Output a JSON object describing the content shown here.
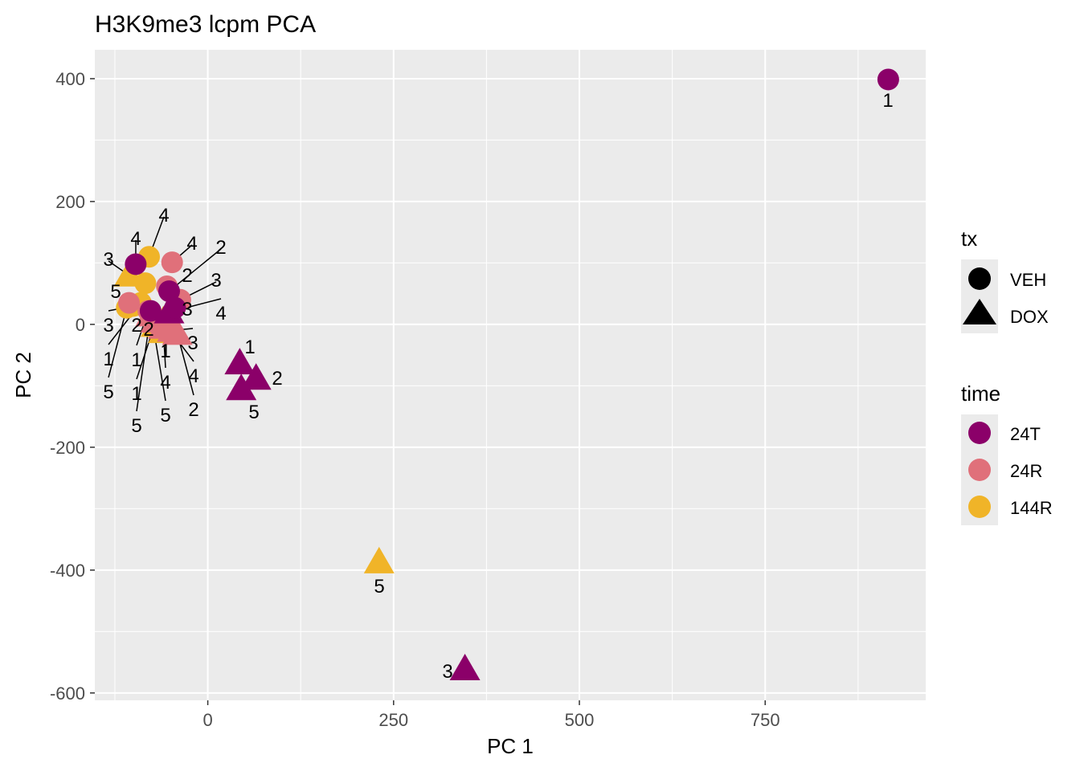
{
  "chart_data": {
    "type": "scatter",
    "title": "H3K9me3 lcpm PCA",
    "xlabel": "PC 1",
    "ylabel": "PC 2",
    "xlim": [
      -152,
      966
    ],
    "ylim": [
      -612,
      447
    ],
    "xticks": [
      0,
      250,
      500,
      750
    ],
    "yticks": [
      -600,
      -400,
      -200,
      0,
      200,
      400
    ],
    "xtick_labels": [
      "0",
      "250",
      "500",
      "750"
    ],
    "ytick_labels": [
      "-600",
      "-400",
      "-200",
      "0",
      "200",
      "400"
    ],
    "grid": true,
    "legend_placement": "right",
    "legend_tx": {
      "title": "tx",
      "items": [
        {
          "label": "VEH",
          "shape": "circle"
        },
        {
          "label": "DOX",
          "shape": "triangle"
        }
      ]
    },
    "legend_time": {
      "title": "time",
      "items": [
        {
          "label": "24T",
          "color": "#8B0069"
        },
        {
          "label": "24R",
          "color": "#E0707A"
        },
        {
          "label": "144R",
          "color": "#F0B428"
        }
      ]
    },
    "points": [
      {
        "x": 915.6,
        "y": 398.7,
        "time": "24T",
        "tx": "VEH",
        "label": "1"
      },
      {
        "x": 346,
        "y": -561,
        "time": "24T",
        "tx": "DOX",
        "label": "3"
      },
      {
        "x": 230.5,
        "y": -387,
        "time": "144R",
        "tx": "DOX",
        "label": "5"
      },
      {
        "x": 43,
        "y": -63,
        "time": "24T",
        "tx": "DOX",
        "label": "1"
      },
      {
        "x": 65,
        "y": -88,
        "time": "24T",
        "tx": "DOX",
        "label": "2"
      },
      {
        "x": 45,
        "y": -105,
        "time": "24T",
        "tx": "DOX",
        "label": "5"
      },
      {
        "x": -79,
        "y": 110,
        "time": "144R",
        "tx": "VEH",
        "label": "4"
      },
      {
        "x": -48,
        "y": 101,
        "time": "24R",
        "tx": "VEH",
        "label": "4"
      },
      {
        "x": -106,
        "y": 80,
        "time": "144R",
        "tx": "DOX",
        "label": "3"
      },
      {
        "x": -84,
        "y": 67,
        "time": "144R",
        "tx": "VEH",
        "label": "2"
      },
      {
        "x": -106,
        "y": 35,
        "time": "24R",
        "tx": "VEH",
        "label": "5"
      },
      {
        "x": -109,
        "y": 27,
        "time": "144R",
        "tx": "VEH",
        "label": "5"
      },
      {
        "x": -100,
        "y": 30,
        "time": "144R",
        "tx": "VEH",
        "label": "3"
      },
      {
        "x": -90,
        "y": 35,
        "time": "144R",
        "tx": "VEH",
        "label": "1"
      },
      {
        "x": -60,
        "y": 5,
        "time": "144R",
        "tx": "DOX",
        "label": "4"
      },
      {
        "x": -60,
        "y": -12,
        "time": "144R",
        "tx": "DOX",
        "label": "1"
      },
      {
        "x": -70,
        "y": -2,
        "time": "144R",
        "tx": "DOX",
        "label": "2"
      },
      {
        "x": -37,
        "y": 40,
        "time": "24R",
        "tx": "VEH",
        "label": "3"
      },
      {
        "x": -55,
        "y": 62,
        "time": "24R",
        "tx": "VEH",
        "label": "2"
      },
      {
        "x": -80,
        "y": 22,
        "time": "24R",
        "tx": "VEH",
        "label": "1"
      },
      {
        "x": -70,
        "y": 5,
        "time": "24R",
        "tx": "DOX",
        "label": "1"
      },
      {
        "x": -60,
        "y": -5,
        "time": "24R",
        "tx": "DOX",
        "label": "4"
      },
      {
        "x": -77,
        "y": 15,
        "time": "24R",
        "tx": "DOX",
        "label": "5"
      },
      {
        "x": -41,
        "y": -15,
        "time": "24R",
        "tx": "DOX",
        "label": "2"
      },
      {
        "x": -48,
        "y": -10,
        "time": "24R",
        "tx": "DOX",
        "label": "3"
      },
      {
        "x": -52,
        "y": 20,
        "time": "24T",
        "tx": "DOX",
        "label": "4"
      },
      {
        "x": -97,
        "y": 98,
        "time": "24T",
        "tx": "VEH",
        "label": "4"
      },
      {
        "x": -52,
        "y": 54,
        "time": "24T",
        "tx": "VEH",
        "label": "2"
      },
      {
        "x": -44,
        "y": 27,
        "time": "24T",
        "tx": "VEH",
        "label": "3"
      },
      {
        "x": -77,
        "y": 22,
        "time": "24T",
        "tx": "VEH",
        "label": "5"
      }
    ]
  }
}
